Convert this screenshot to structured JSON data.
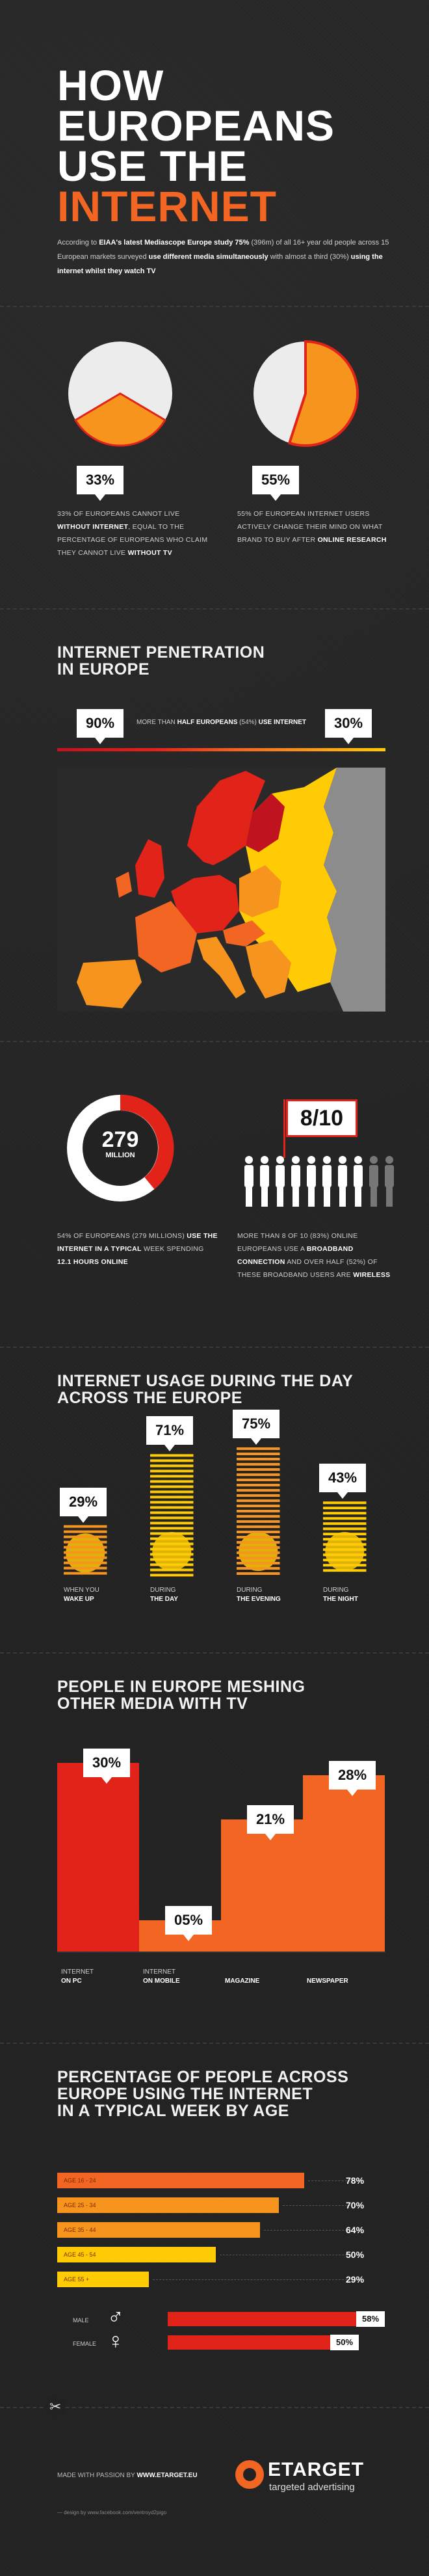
{
  "header": {
    "line1": "HOW",
    "line2": "EUROPEANS",
    "line3": "USE THE",
    "line4": "INTERNET",
    "intro_a": "According to ",
    "intro_b": "EIAA's latest Mediascope Europe study 75%",
    "intro_c": " (396m) of all 16+ year old people across 15 European markets surveyed ",
    "intro_d": "use different media simultaneously",
    "intro_e": " with almost a third (30%) ",
    "intro_f": "using the internet whilst they watch TV"
  },
  "stats1": {
    "left_value": "33%",
    "left_text_a": "33% OF EUROPEANS CANNOT LIVE ",
    "left_text_b": "WITHOUT INTERNET",
    "left_text_c": ", EQUAL TO THE PERCENTAGE OF EUROPEANS WHO CLAIM THEY CANNOT LIVE ",
    "left_text_d": "WITHOUT TV",
    "right_value": "55%",
    "right_text_a": "55% OF EUROPEAN INTERNET USERS ACTIVELY CHANGE THEIR MIND ON WHAT BRAND TO BUY AFTER ",
    "right_text_b": "ONLINE RESEARCH"
  },
  "penetration": {
    "title_line1": "INTERNET PENETRATION",
    "title_line2": "IN EUROPE",
    "max": "90%",
    "min": "30%",
    "middle_a": "MORE THAN ",
    "middle_b": "HALF EUROPEANS",
    "middle_c": " (54%) ",
    "middle_d": "USE INTERNET"
  },
  "stats2": {
    "donut_value": "279",
    "donut_unit": "MILLION",
    "left_text_a": "54% OF EUROPEANS (279 MILLIONS) ",
    "left_text_b": "USE THE INTERNET IN A TYPICAL",
    "left_text_c": " WEEK SPENDING ",
    "left_text_d": "12.1 HOURS ONLINE",
    "ratio": "8/10",
    "right_text_a": "MORE THAN 8 OF 10 (83%) ONLINE EUROPEANS USE A ",
    "right_text_b": "BROADBAND CONNECTION",
    "right_text_c": " AND OVER HALF (52%) OF THESE BROADBAND USERS ARE ",
    "right_text_d": "WIRELESS"
  },
  "daytime": {
    "title_line1": "INTERNET USAGE DURING THE DAY",
    "title_line2": "ACROSS THE EUROPE",
    "items": [
      {
        "value": "29%",
        "label_a": "WHEN YOU",
        "label_b": "WAKE UP"
      },
      {
        "value": "71%",
        "label_a": "DURING",
        "label_b": "THE DAY"
      },
      {
        "value": "75%",
        "label_a": "DURING",
        "label_b": "THE EVENING"
      },
      {
        "value": "43%",
        "label_a": "DURING",
        "label_b": "THE NIGHT"
      }
    ]
  },
  "meshing": {
    "title_line1": "PEOPLE IN EUROPE MESHING",
    "title_line2": "OTHER MEDIA WITH TV",
    "items": [
      {
        "value": "30%",
        "label_a": "INTERNET",
        "label_b": "ON PC"
      },
      {
        "value": "05%",
        "label_a": "INTERNET",
        "label_b": "ON MOBILE"
      },
      {
        "value": "21%",
        "label_a": "",
        "label_b": "MAGAZINE"
      },
      {
        "value": "28%",
        "label_a": "",
        "label_b": "NEWSPAPER"
      }
    ]
  },
  "age": {
    "title_line1": "PERCENTAGE OF PEOPLE ACROSS",
    "title_line2": "EUROPE USING THE INTERNET",
    "title_line3": "IN A TYPICAL WEEK BY AGE",
    "rows": [
      {
        "label": "AGE 16 - 24",
        "value": "78%"
      },
      {
        "label": "AGE 25 - 34",
        "value": "70%"
      },
      {
        "label": "AGE 35 - 44",
        "value": "64%"
      },
      {
        "label": "AGE 45 - 54",
        "value": "50%"
      },
      {
        "label": "AGE 55 +",
        "value": "29%"
      }
    ],
    "male_label": "MALE",
    "male_value": "58%",
    "female_label": "FEMALE",
    "female_value": "50%"
  },
  "footer": {
    "made_a": "MADE WITH PASSION BY ",
    "made_b": "WWW.ETARGET.EU",
    "credit": "— design by www.facebook.com/ventroyd2pigo",
    "brand": "ETARGET",
    "tagline": "targeted advertising"
  },
  "colors": {
    "red": "#e2231a",
    "orange": "#f26522",
    "amber": "#f7941d",
    "yellow": "#ffcb05",
    "dark": "#222222"
  },
  "chart_data": [
    {
      "type": "pie",
      "title": "",
      "values": [
        33,
        67
      ]
    },
    {
      "type": "pie",
      "title": "",
      "values": [
        55,
        45
      ]
    },
    {
      "type": "bar",
      "categories": [
        "WHEN YOU WAKE UP",
        "DURING THE DAY",
        "DURING THE EVENING",
        "DURING THE NIGHT"
      ],
      "values": [
        29,
        71,
        75,
        43
      ]
    },
    {
      "type": "bar",
      "categories": [
        "INTERNET ON PC",
        "INTERNET ON MOBILE",
        "MAGAZINE",
        "NEWSPAPER"
      ],
      "values": [
        30,
        5,
        21,
        28
      ]
    },
    {
      "type": "bar",
      "categories": [
        "AGE 16 - 24",
        "AGE 25 - 34",
        "AGE 35 - 44",
        "AGE 45 - 54",
        "AGE 55 +"
      ],
      "values": [
        78,
        70,
        64,
        50,
        29
      ]
    },
    {
      "type": "bar",
      "categories": [
        "MALE",
        "FEMALE"
      ],
      "values": [
        58,
        50
      ]
    }
  ]
}
